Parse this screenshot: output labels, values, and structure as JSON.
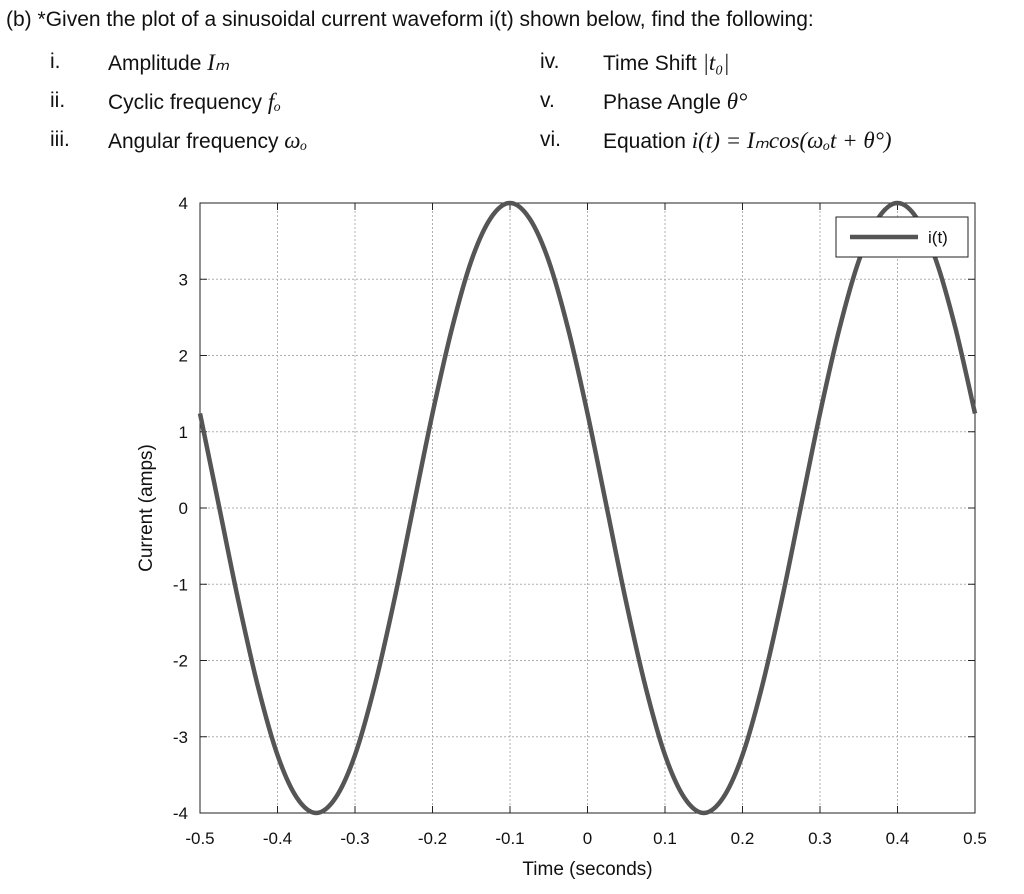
{
  "question": {
    "prefix": "(b)",
    "text": "*Given the plot of a sinusoidal current waveform i(t) shown below, find the following:",
    "items": [
      {
        "num": "i.",
        "label": "Amplitude",
        "math": "Iₘ"
      },
      {
        "num": "ii.",
        "label": "Cyclic frequency",
        "math": "fₒ"
      },
      {
        "num": "iii.",
        "label": "Angular frequency",
        "math": "ωₒ"
      },
      {
        "num": "iv.",
        "label": "Time Shift",
        "math": "|t₀|"
      },
      {
        "num": "v.",
        "label": "Phase Angle",
        "math": "θ°"
      },
      {
        "num": "vi.",
        "label": "Equation",
        "math": "i(t) = Iₘcos(ωₒt + θ°)"
      }
    ]
  },
  "chart_data": {
    "type": "line",
    "title": "",
    "xlabel": "Time (seconds)",
    "ylabel": "Current (amps)",
    "xlim": [
      -0.5,
      0.5
    ],
    "ylim": [
      -4,
      4
    ],
    "xticks": [
      "-0.5",
      "-0.4",
      "-0.3",
      "-0.2",
      "-0.1",
      "0",
      "0.1",
      "0.2",
      "0.3",
      "0.4",
      "0.5"
    ],
    "yticks": [
      "4",
      "3",
      "2",
      "1",
      "0",
      "-1",
      "-2",
      "-3",
      "-4"
    ],
    "grid": true,
    "legend_position": "top-right",
    "series": [
      {
        "name": "i(t)",
        "color": "#555555",
        "x": [
          -0.5,
          -0.475,
          -0.45,
          -0.425,
          -0.4,
          -0.375,
          -0.35,
          -0.325,
          -0.3,
          -0.275,
          -0.25,
          -0.225,
          -0.2,
          -0.175,
          -0.15,
          -0.125,
          -0.1,
          -0.075,
          -0.05,
          -0.025,
          0,
          0.025,
          0.05,
          0.075,
          0.1,
          0.125,
          0.15,
          0.175,
          0.2,
          0.225,
          0.25,
          0.275,
          0.3,
          0.325,
          0.35,
          0.375,
          0.4,
          0.425,
          0.45,
          0.475,
          0.5
        ],
        "y": [
          1.24,
          0,
          -1.24,
          -2.35,
          -3.24,
          -3.8,
          -4,
          -3.8,
          -3.24,
          -2.35,
          -1.24,
          0,
          1.24,
          2.35,
          3.24,
          3.8,
          4,
          3.8,
          3.24,
          2.35,
          1.24,
          0,
          -1.24,
          -2.35,
          -3.24,
          -3.8,
          -4,
          -3.8,
          -3.24,
          -2.35,
          -1.24,
          0,
          1.24,
          2.35,
          3.24,
          3.8,
          4,
          3.8,
          3.24,
          2.35,
          1.24
        ]
      }
    ]
  }
}
